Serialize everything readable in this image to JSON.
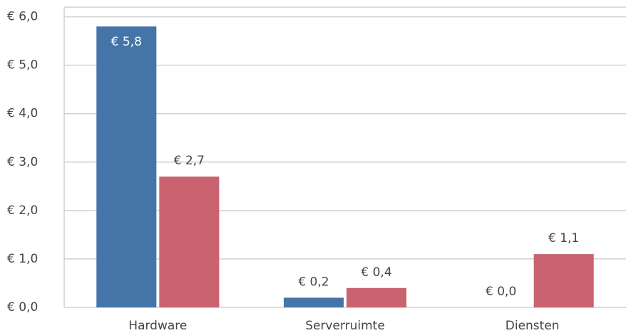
{
  "chart_data": {
    "type": "bar",
    "categories": [
      "Hardware",
      "Serverruimte",
      "Diensten"
    ],
    "series": [
      {
        "color": "#4575a8",
        "values": [
          5.8,
          0.2,
          0
        ],
        "value_labels": [
          "€ 5,8",
          "€ 0,2",
          "€ 0,0"
        ]
      },
      {
        "color": "#c9636f",
        "values": [
          2.7,
          0.4,
          1.1
        ],
        "value_labels": [
          "€ 2,7",
          "€ 0,4",
          "€ 1,1"
        ]
      }
    ],
    "ylim": [
      0,
      6.2
    ],
    "yticks": [
      {
        "value": 0,
        "label": "€ 0,0"
      },
      {
        "value": 1,
        "label": "€ 1,0"
      },
      {
        "value": 2,
        "label": "€ 2,0"
      },
      {
        "value": 3,
        "label": "€ 3,0"
      },
      {
        "value": 4,
        "label": "€ 4,0"
      },
      {
        "value": 5,
        "label": "€ 5,0"
      },
      {
        "value": 6,
        "label": "€ 6,0"
      }
    ],
    "grid": true
  }
}
